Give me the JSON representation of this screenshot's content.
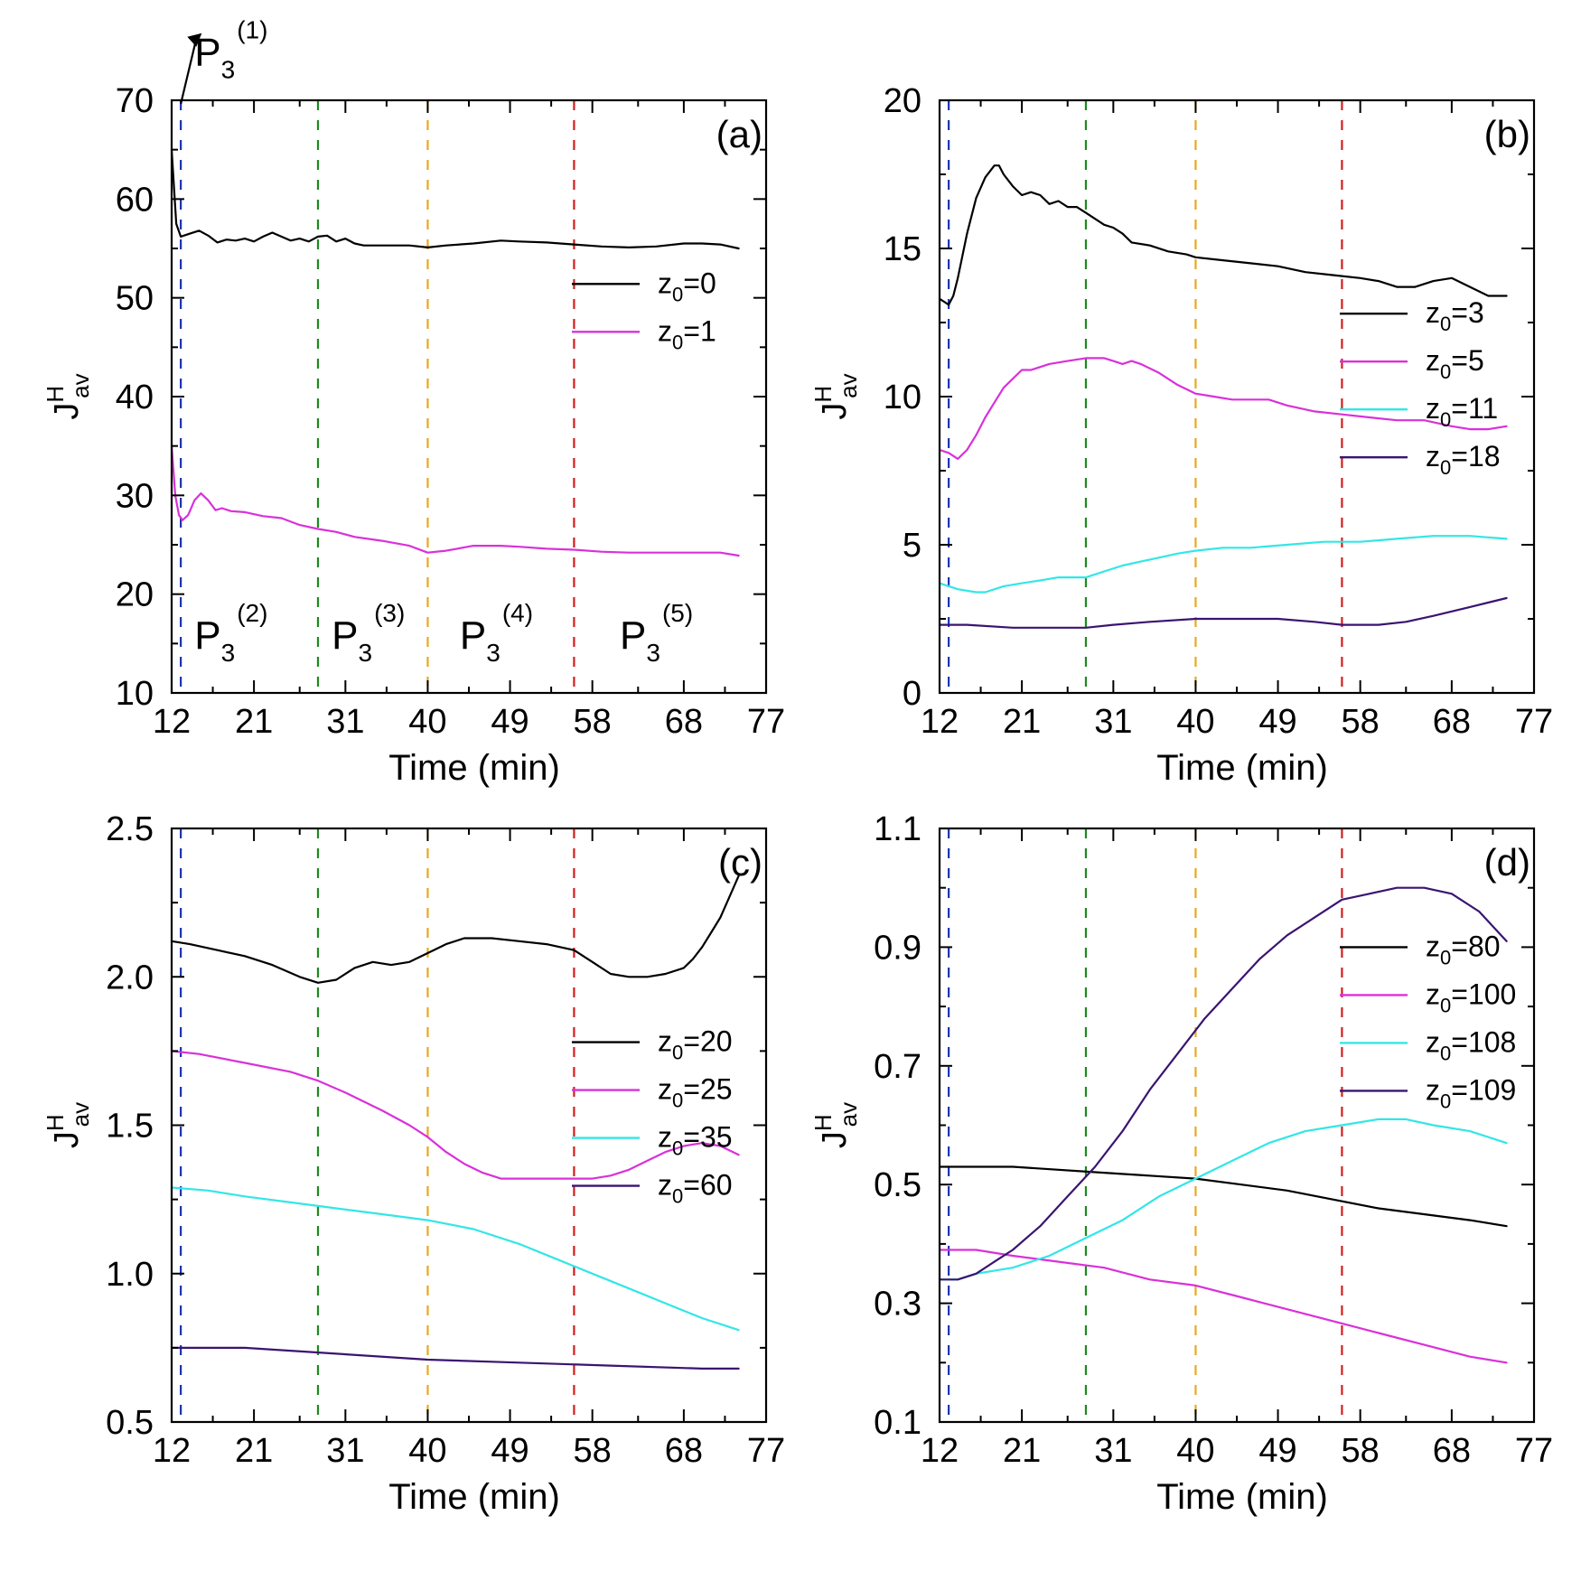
{
  "x_axis_label": "Time (min)",
  "y_axis_label": {
    "main": "J",
    "sup": "H",
    "sub": "av"
  },
  "phase_colors": [
    "#1a35b0",
    "#1c8a1c",
    "#e8a81e",
    "#d21f1f"
  ],
  "series_colors": {
    "black": "#000000",
    "magenta": "#d931d9",
    "cyan": "#33e6e6",
    "indigo": "#3a1470"
  },
  "chart_data": [
    {
      "type": "line",
      "panel": "a",
      "panel_label": "(a)",
      "xticks": [
        12,
        21,
        31,
        40,
        49,
        58,
        68,
        77
      ],
      "xlim": [
        12,
        77
      ],
      "ylim": [
        10,
        70
      ],
      "yticks": [
        {
          "v": 10,
          "t": "10"
        },
        {
          "v": 20,
          "t": "20"
        },
        {
          "v": 30,
          "t": "30"
        },
        {
          "v": 40,
          "t": "40"
        },
        {
          "v": 50,
          "t": "50"
        },
        {
          "v": 60,
          "t": "60"
        },
        {
          "v": 70,
          "t": "70"
        }
      ],
      "ylabel": "J^H_av",
      "xlabel": "Time (min)",
      "phase_lines": [
        13,
        28,
        40,
        56
      ],
      "legend_top": 0.31,
      "phase_labels": [
        {
          "base": "P",
          "sub": "3",
          "sup": "(1)",
          "x": 14.5,
          "y": 73.5
        },
        {
          "base": "P",
          "sub": "3",
          "sup": "(2)",
          "x": 14.5,
          "y": 14.5
        },
        {
          "base": "P",
          "sub": "3",
          "sup": "(3)",
          "x": 29.5,
          "y": 14.5
        },
        {
          "base": "P",
          "sub": "3",
          "sup": "(4)",
          "x": 43.5,
          "y": 14.5
        },
        {
          "base": "P",
          "sub": "3",
          "sup": "(5)",
          "x": 61,
          "y": 14.5
        }
      ],
      "series": [
        {
          "name": "z0=0",
          "label_base": "z",
          "label_sub": "0",
          "label_value": "=0",
          "color": "#000000",
          "x": [
            12,
            12.5,
            13,
            14,
            15,
            16,
            17,
            18,
            19,
            20,
            21,
            22,
            23,
            24,
            25,
            26,
            27,
            28,
            29,
            30,
            31,
            32,
            33,
            35,
            38,
            40,
            42,
            45,
            48,
            50,
            53,
            56,
            59,
            62,
            65,
            68,
            70,
            72,
            74
          ],
          "y": [
            65,
            57.5,
            56.2,
            56.5,
            56.8,
            56.3,
            55.6,
            55.9,
            55.8,
            56,
            55.7,
            56.2,
            56.6,
            56.2,
            55.8,
            56,
            55.7,
            56.2,
            56.3,
            55.7,
            56,
            55.5,
            55.3,
            55.3,
            55.3,
            55.1,
            55.3,
            55.5,
            55.8,
            55.7,
            55.6,
            55.4,
            55.2,
            55.1,
            55.2,
            55.5,
            55.5,
            55.4,
            55
          ]
        },
        {
          "name": "z0=1",
          "label_base": "z",
          "label_sub": "0",
          "label_value": "=1",
          "color": "#d931d9",
          "x": [
            12,
            12.4,
            12.8,
            13.2,
            13.8,
            14.5,
            15.2,
            16,
            16.8,
            17.5,
            18.5,
            20,
            22,
            24,
            26,
            28,
            30,
            32,
            35,
            38,
            40,
            42,
            45,
            48,
            50,
            53,
            56,
            59,
            62,
            65,
            68,
            70,
            72,
            74
          ],
          "y": [
            35,
            30,
            28,
            27.5,
            28,
            29.5,
            30.2,
            29.5,
            28.5,
            28.7,
            28.4,
            28.3,
            27.9,
            27.7,
            27,
            26.6,
            26.3,
            25.8,
            25.4,
            24.9,
            24.2,
            24.4,
            24.9,
            24.9,
            24.8,
            24.6,
            24.5,
            24.3,
            24.2,
            24.2,
            24.2,
            24.2,
            24.2,
            23.9
          ]
        }
      ]
    },
    {
      "type": "line",
      "panel": "b",
      "panel_label": "(b)",
      "xticks": [
        12,
        21,
        31,
        40,
        49,
        58,
        68,
        77
      ],
      "xlim": [
        12,
        77
      ],
      "ylim": [
        0,
        20
      ],
      "yticks": [
        {
          "v": 0,
          "t": "0"
        },
        {
          "v": 5,
          "t": "5"
        },
        {
          "v": 10,
          "t": "10"
        },
        {
          "v": 15,
          "t": "15"
        },
        {
          "v": 20,
          "t": "20"
        }
      ],
      "ylabel": "J^H_av",
      "xlabel": "Time (min)",
      "phase_lines": [
        13,
        28,
        40,
        56
      ],
      "legend_top": 0.36,
      "phase_labels": [],
      "series": [
        {
          "name": "z0=3",
          "label_base": "z",
          "label_sub": "0",
          "label_value": "=3",
          "color": "#000000",
          "x": [
            12,
            12.5,
            13,
            13.5,
            14,
            15,
            16,
            17,
            18,
            18.5,
            19,
            20,
            21,
            22,
            23,
            24,
            25,
            26,
            27,
            28,
            29,
            30,
            31,
            32,
            33,
            35,
            37,
            39,
            40,
            43,
            46,
            49,
            52,
            55,
            58,
            60,
            62,
            64,
            66,
            68,
            70,
            72,
            74
          ],
          "y": [
            13.3,
            13.2,
            13.1,
            13.4,
            14,
            15.5,
            16.7,
            17.4,
            17.8,
            17.8,
            17.5,
            17.1,
            16.8,
            16.9,
            16.8,
            16.5,
            16.6,
            16.4,
            16.4,
            16.2,
            16,
            15.8,
            15.7,
            15.5,
            15.2,
            15.1,
            14.9,
            14.8,
            14.7,
            14.6,
            14.5,
            14.4,
            14.2,
            14.1,
            14,
            13.9,
            13.7,
            13.7,
            13.9,
            14,
            13.7,
            13.4,
            13.4
          ]
        },
        {
          "name": "z0=5",
          "label_base": "z",
          "label_sub": "0",
          "label_value": "=5",
          "color": "#d931d9",
          "x": [
            12,
            13,
            14,
            15,
            16,
            17,
            18,
            19,
            20,
            21,
            22,
            24,
            26,
            28,
            30,
            31,
            32,
            33,
            34,
            36,
            38,
            40,
            42,
            44,
            46,
            48,
            50,
            53,
            56,
            59,
            62,
            65,
            68,
            70,
            72,
            74
          ],
          "y": [
            8.2,
            8.1,
            7.9,
            8.2,
            8.7,
            9.3,
            9.8,
            10.3,
            10.6,
            10.9,
            10.9,
            11.1,
            11.2,
            11.3,
            11.3,
            11.2,
            11.1,
            11.2,
            11.1,
            10.8,
            10.4,
            10.1,
            10,
            9.9,
            9.9,
            9.9,
            9.7,
            9.5,
            9.4,
            9.3,
            9.2,
            9.2,
            9,
            8.9,
            8.9,
            9
          ]
        },
        {
          "name": "z0=11",
          "label_base": "z",
          "label_sub": "0",
          "label_value": "=11",
          "color": "#33e6e6",
          "x": [
            12,
            14,
            16,
            17,
            19,
            21,
            23,
            25,
            28,
            30,
            32,
            35,
            38,
            40,
            43,
            46,
            50,
            54,
            58,
            62,
            66,
            70,
            74
          ],
          "y": [
            3.7,
            3.5,
            3.4,
            3.4,
            3.6,
            3.7,
            3.8,
            3.9,
            3.9,
            4.1,
            4.3,
            4.5,
            4.7,
            4.8,
            4.9,
            4.9,
            5,
            5.1,
            5.1,
            5.2,
            5.3,
            5.3,
            5.2
          ]
        },
        {
          "name": "z0=18",
          "label_base": "z",
          "label_sub": "0",
          "label_value": "=18",
          "color": "#3a1470",
          "x": [
            12,
            15,
            20,
            25,
            28,
            31,
            35,
            40,
            44,
            49,
            53,
            56,
            60,
            63,
            66,
            70,
            74
          ],
          "y": [
            2.3,
            2.3,
            2.2,
            2.2,
            2.2,
            2.3,
            2.4,
            2.5,
            2.5,
            2.5,
            2.4,
            2.3,
            2.3,
            2.4,
            2.6,
            2.9,
            3.2
          ]
        }
      ]
    },
    {
      "type": "line",
      "panel": "c",
      "panel_label": "(c)",
      "xticks": [
        12,
        21,
        31,
        40,
        49,
        58,
        68,
        77
      ],
      "xlim": [
        12,
        77
      ],
      "ylim": [
        0.5,
        2.5
      ],
      "yticks": [
        {
          "v": 0.5,
          "t": "0.5"
        },
        {
          "v": 1.0,
          "t": "1.0"
        },
        {
          "v": 1.5,
          "t": "1.5"
        },
        {
          "v": 2.0,
          "t": "2.0"
        },
        {
          "v": 2.5,
          "t": "2.5"
        }
      ],
      "ylabel": "J^H_av",
      "xlabel": "Time (min)",
      "phase_lines": [
        13,
        28,
        40,
        56
      ],
      "legend_top": 0.36,
      "phase_labels": [],
      "series": [
        {
          "name": "z0=20",
          "label_base": "z",
          "label_sub": "0",
          "label_value": "=20",
          "color": "#000000",
          "x": [
            12,
            14,
            17,
            20,
            23,
            26,
            28,
            30,
            32,
            34,
            36,
            38,
            40,
            42,
            44,
            47,
            50,
            53,
            56,
            58,
            60,
            62,
            64,
            66,
            68,
            69,
            70,
            71,
            72,
            73,
            74
          ],
          "y": [
            2.12,
            2.11,
            2.09,
            2.07,
            2.04,
            2.0,
            1.98,
            1.99,
            2.03,
            2.05,
            2.04,
            2.05,
            2.08,
            2.11,
            2.13,
            2.13,
            2.12,
            2.11,
            2.09,
            2.05,
            2.01,
            2.0,
            2.0,
            2.01,
            2.03,
            2.06,
            2.1,
            2.15,
            2.2,
            2.27,
            2.34
          ]
        },
        {
          "name": "z0=25",
          "label_base": "z",
          "label_sub": "0",
          "label_value": "=25",
          "color": "#d931d9",
          "x": [
            12,
            15,
            20,
            25,
            28,
            31,
            35,
            38,
            40,
            42,
            44,
            46,
            48,
            50,
            53,
            56,
            58,
            60,
            62,
            64,
            66,
            68,
            70,
            72,
            74
          ],
          "y": [
            1.75,
            1.74,
            1.71,
            1.68,
            1.65,
            1.61,
            1.55,
            1.5,
            1.46,
            1.41,
            1.37,
            1.34,
            1.32,
            1.32,
            1.32,
            1.32,
            1.32,
            1.33,
            1.35,
            1.38,
            1.41,
            1.43,
            1.44,
            1.43,
            1.4
          ]
        },
        {
          "name": "z0=35",
          "label_base": "z",
          "label_sub": "0",
          "label_value": "=35",
          "color": "#33e6e6",
          "x": [
            12,
            16,
            20,
            25,
            30,
            35,
            40,
            45,
            50,
            54,
            58,
            62,
            66,
            70,
            74
          ],
          "y": [
            1.29,
            1.28,
            1.26,
            1.24,
            1.22,
            1.2,
            1.18,
            1.15,
            1.1,
            1.05,
            1.0,
            0.95,
            0.9,
            0.85,
            0.81
          ]
        },
        {
          "name": "z0=60",
          "label_base": "z",
          "label_sub": "0",
          "label_value": "=60",
          "color": "#3a1470",
          "x": [
            12,
            20,
            30,
            40,
            50,
            60,
            70,
            74
          ],
          "y": [
            0.75,
            0.75,
            0.73,
            0.71,
            0.7,
            0.69,
            0.68,
            0.68
          ]
        }
      ]
    },
    {
      "type": "line",
      "panel": "d",
      "panel_label": "(d)",
      "xticks": [
        12,
        21,
        31,
        40,
        49,
        58,
        68,
        77
      ],
      "xlim": [
        12,
        77
      ],
      "ylim": [
        0.1,
        1.1
      ],
      "yticks": [
        {
          "v": 0.1,
          "t": "0.1"
        },
        {
          "v": 0.3,
          "t": "0.3"
        },
        {
          "v": 0.5,
          "t": "0.5"
        },
        {
          "v": 0.7,
          "t": "0.7"
        },
        {
          "v": 0.9,
          "t": "0.9"
        },
        {
          "v": 1.1,
          "t": "1.1"
        }
      ],
      "ylabel": "J^H_av",
      "xlabel": "Time (min)",
      "phase_lines": [
        13,
        28,
        40,
        56
      ],
      "legend_top": 0.2,
      "phase_labels": [],
      "series": [
        {
          "name": "z0=80",
          "label_base": "z",
          "label_sub": "0",
          "label_value": "=80",
          "color": "#000000",
          "x": [
            12,
            20,
            30,
            40,
            50,
            60,
            70,
            74
          ],
          "y": [
            0.53,
            0.53,
            0.52,
            0.51,
            0.49,
            0.46,
            0.44,
            0.43
          ]
        },
        {
          "name": "z0=100",
          "label_base": "z",
          "label_sub": "0",
          "label_value": "=100",
          "color": "#d931d9",
          "x": [
            12,
            16,
            20,
            25,
            30,
            35,
            40,
            45,
            50,
            55,
            60,
            65,
            70,
            74
          ],
          "y": [
            0.39,
            0.39,
            0.38,
            0.37,
            0.36,
            0.34,
            0.33,
            0.31,
            0.29,
            0.27,
            0.25,
            0.23,
            0.21,
            0.2
          ]
        },
        {
          "name": "z0=108",
          "label_base": "z",
          "label_sub": "0",
          "label_value": "=108",
          "color": "#33e6e6",
          "x": [
            12,
            14,
            16,
            20,
            24,
            28,
            32,
            36,
            40,
            44,
            48,
            52,
            56,
            60,
            63,
            66,
            70,
            74
          ],
          "y": [
            0.34,
            0.34,
            0.35,
            0.36,
            0.38,
            0.41,
            0.44,
            0.48,
            0.51,
            0.54,
            0.57,
            0.59,
            0.6,
            0.61,
            0.61,
            0.6,
            0.59,
            0.57
          ]
        },
        {
          "name": "z0=109",
          "label_base": "z",
          "label_sub": "0",
          "label_value": "=109",
          "color": "#3a1470",
          "x": [
            12,
            14,
            16,
            18,
            20,
            23,
            26,
            29,
            32,
            35,
            38,
            41,
            44,
            47,
            50,
            53,
            56,
            59,
            62,
            65,
            68,
            71,
            74
          ],
          "y": [
            0.34,
            0.34,
            0.35,
            0.37,
            0.39,
            0.43,
            0.48,
            0.53,
            0.59,
            0.66,
            0.72,
            0.78,
            0.83,
            0.88,
            0.92,
            0.95,
            0.98,
            0.99,
            1.0,
            1.0,
            0.99,
            0.96,
            0.91
          ]
        }
      ]
    }
  ]
}
